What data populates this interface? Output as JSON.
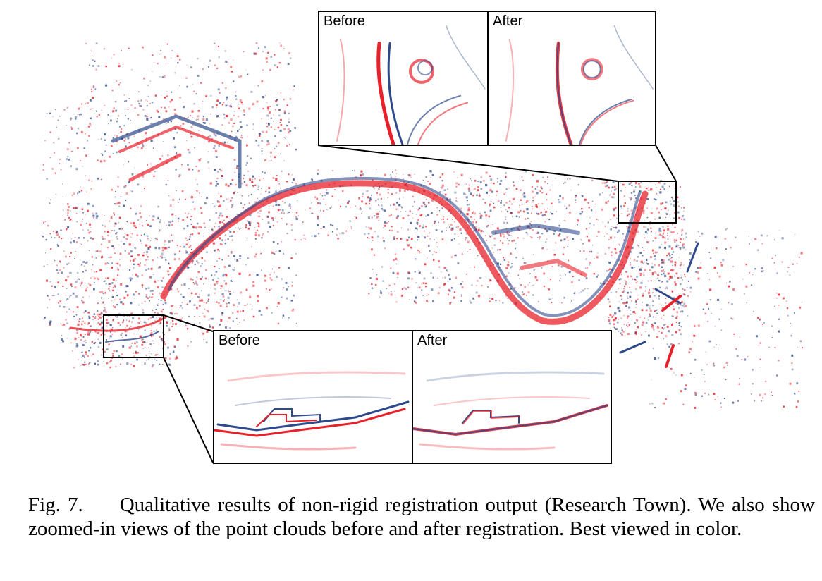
{
  "figure": {
    "insets": {
      "top": {
        "before_label": "Before",
        "after_label": "After"
      },
      "bottom": {
        "before_label": "Before",
        "after_label": "After"
      }
    },
    "colors": {
      "before_cloud": "#e8202a",
      "after_cloud": "#2e4a8c",
      "frame": "#000000"
    }
  },
  "caption": {
    "label": "Fig. 7.",
    "text": "Qualitative results of non-rigid registration output (Research Town). We also show zoomed-in views of the point clouds before and after registration. Best viewed in color."
  }
}
